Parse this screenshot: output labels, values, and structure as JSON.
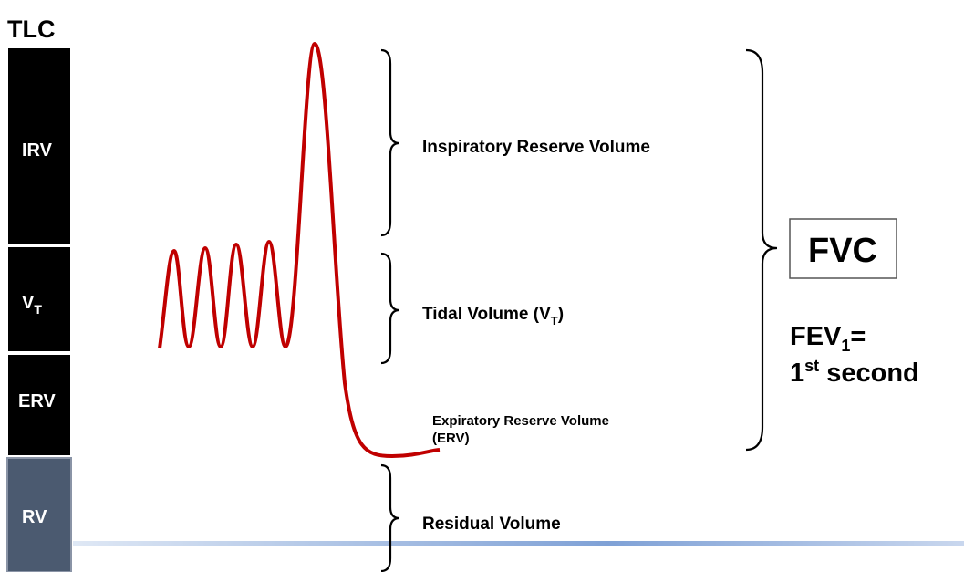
{
  "bar": {
    "title": "TLC",
    "segments": [
      {
        "label": "IRV"
      },
      {
        "label": "V",
        "sub": "T"
      },
      {
        "label": "ERV"
      },
      {
        "label": "RV"
      }
    ]
  },
  "labels": {
    "irv": "Inspiratory Reserve Volume",
    "tidal": {
      "text": "Tidal Volume (V",
      "sub": "T",
      "suffix": ")"
    },
    "erv": [
      "Expiratory Reserve Volume",
      "(ERV)"
    ],
    "rv": "Residual Volume"
  },
  "fvc": "FVC",
  "fev": {
    "text": "FEV",
    "sub": "1",
    "suffix": "="
  },
  "first": {
    "text": "1",
    "sup": "st",
    "suffix": " second"
  }
}
